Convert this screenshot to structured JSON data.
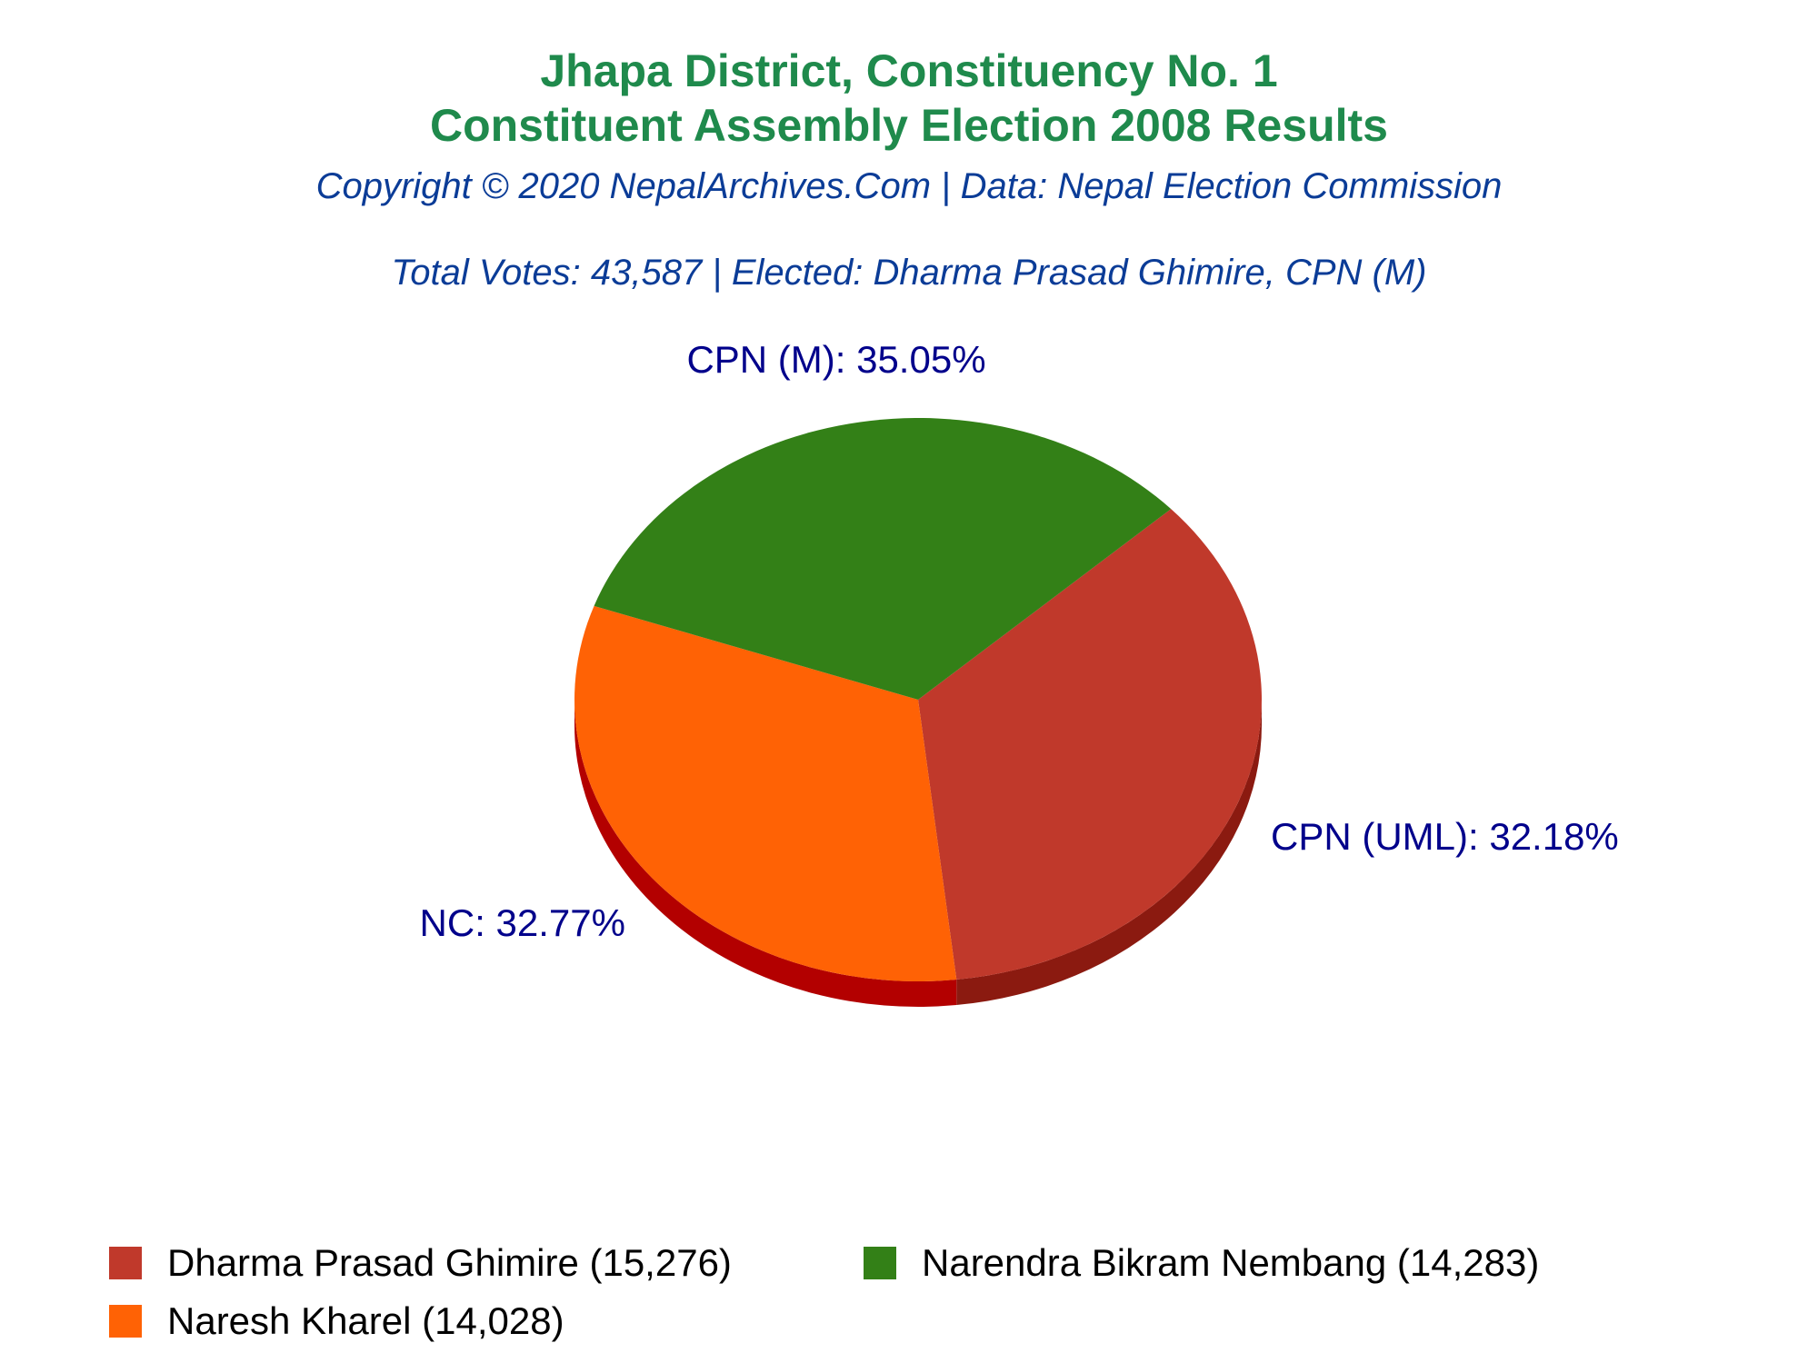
{
  "chart_data": {
    "type": "pie",
    "title": "Jhapa District, Constituency No. 1",
    "title2": "Constituent Assembly Election 2008 Results",
    "copyright": "Copyright © 2020 NepalArchives.Com | Data: Nepal Election Commission",
    "summary": "Total Votes: 43,587 | Elected: Dharma Prasad Ghimire, CPN (M)",
    "slices": [
      {
        "party": "CPN (M)",
        "percent": 35.05,
        "label": "CPN (M): 35.05%",
        "color": "#c0392b",
        "side_color": "#8b1a10"
      },
      {
        "party": "CPN (UML)",
        "percent": 32.18,
        "label": "CPN (UML): 32.18%",
        "color": "#ff6205",
        "side_color": "#b30000"
      },
      {
        "party": "NC",
        "percent": 32.77,
        "label": "NC: 32.77%",
        "color": "#338017",
        "side_color": "#062a00"
      }
    ],
    "legend": [
      {
        "label": "Dharma Prasad Ghimire (15,276)",
        "color": "#c0392b"
      },
      {
        "label": "Narendra Bikram Nembang (14,283)",
        "color": "#338017"
      },
      {
        "label": "Naresh Kharel (14,028)",
        "color": "#ff6205"
      }
    ],
    "label_color": "#00008b"
  }
}
